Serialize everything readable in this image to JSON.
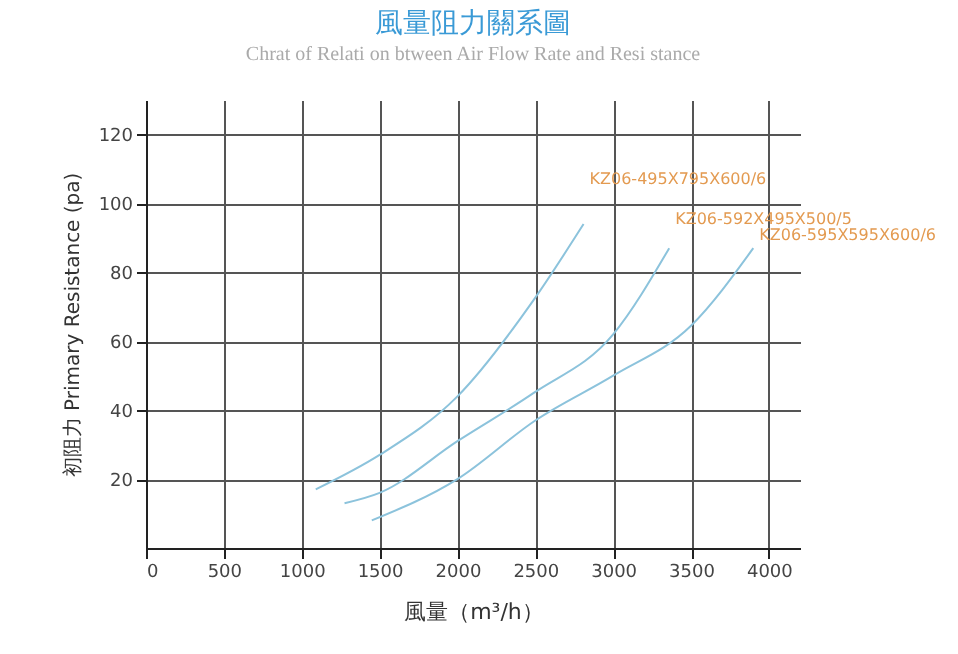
{
  "chart_data": {
    "type": "line",
    "title": "風量阻力關系圖",
    "subtitle": "Chrat of Relati on btween Air Flow Rate and Resi stance",
    "xlabel": "風量（m³/h）",
    "ylabel": "初阻力 Primary Resistance (pa)",
    "xlim": [
      0,
      4200
    ],
    "ylim": [
      0,
      130
    ],
    "xticks": [
      0,
      500,
      1000,
      1500,
      2000,
      2500,
      3000,
      3500,
      4000
    ],
    "yticks": [
      20,
      40,
      60,
      80,
      100,
      120
    ],
    "grid": true,
    "marker": "none",
    "line_style": "solid",
    "series": [
      {
        "name": "KZ06-495X795X600/6",
        "color": "#8cc3dc",
        "x": [
          1090,
          1500,
          2000,
          2490,
          2810
        ],
        "values": [
          17,
          27,
          44,
          72,
          94
        ]
      },
      {
        "name": "KZ06-592X495X500/5",
        "color": "#8cc3dc",
        "x": [
          1275,
          1500,
          2000,
          2490,
          3000,
          3360
        ],
        "values": [
          13,
          16,
          31,
          45,
          62,
          87
        ]
      },
      {
        "name": "KZ06-595X595X600/6",
        "color": "#8cc3dc",
        "x": [
          1450,
          2000,
          2500,
          3000,
          3500,
          3900
        ],
        "values": [
          8,
          20,
          37,
          50,
          64.5,
          87
        ]
      }
    ]
  }
}
